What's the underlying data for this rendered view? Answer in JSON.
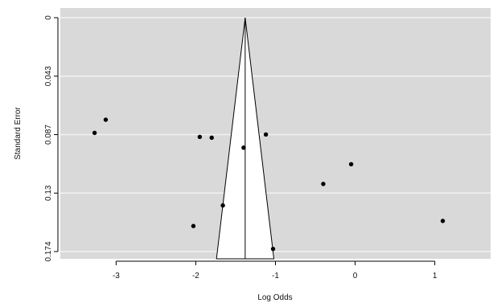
{
  "chart_data": {
    "type": "scatter",
    "chart_subtype": "funnel plot",
    "title": "",
    "xlabel": "Log Odds",
    "ylabel": "Standard Error",
    "xlim": [
      -3.7,
      1.7
    ],
    "ylim": [
      0,
      0.174
    ],
    "y_axis_reversed": true,
    "x_ticks": [
      "-3",
      "-2",
      "-1",
      "0",
      "1"
    ],
    "x_tick_values": [
      -3,
      -2,
      -1,
      0,
      1
    ],
    "y_ticks": [
      "0",
      "0.043",
      "0.087",
      "0.13",
      "0.174"
    ],
    "y_tick_values": [
      0,
      0.0435,
      0.087,
      0.1305,
      0.174
    ],
    "grid": true,
    "background_color": "#d9d9d9",
    "grid_color": "#f2f2f2",
    "point_color": "#000000",
    "funnel": {
      "center": -1.38,
      "apex_se": 0,
      "base_se": 0.174,
      "base_left": -1.74,
      "base_right": -1.02,
      "fill_color": "#ffffff"
    },
    "points": [
      {
        "x": -3.27,
        "y": 0.0857
      },
      {
        "x": -3.13,
        "y": 0.0759
      },
      {
        "x": -1.95,
        "y": 0.0887
      },
      {
        "x": -1.8,
        "y": 0.0893
      },
      {
        "x": -1.4,
        "y": 0.0967
      },
      {
        "x": -1.12,
        "y": 0.0869
      },
      {
        "x": -0.05,
        "y": 0.109
      },
      {
        "x": -0.4,
        "y": 0.1237
      },
      {
        "x": -1.66,
        "y": 0.1397
      },
      {
        "x": -2.03,
        "y": 0.155
      },
      {
        "x": -1.03,
        "y": 0.172
      },
      {
        "x": 1.1,
        "y": 0.1512
      }
    ]
  }
}
